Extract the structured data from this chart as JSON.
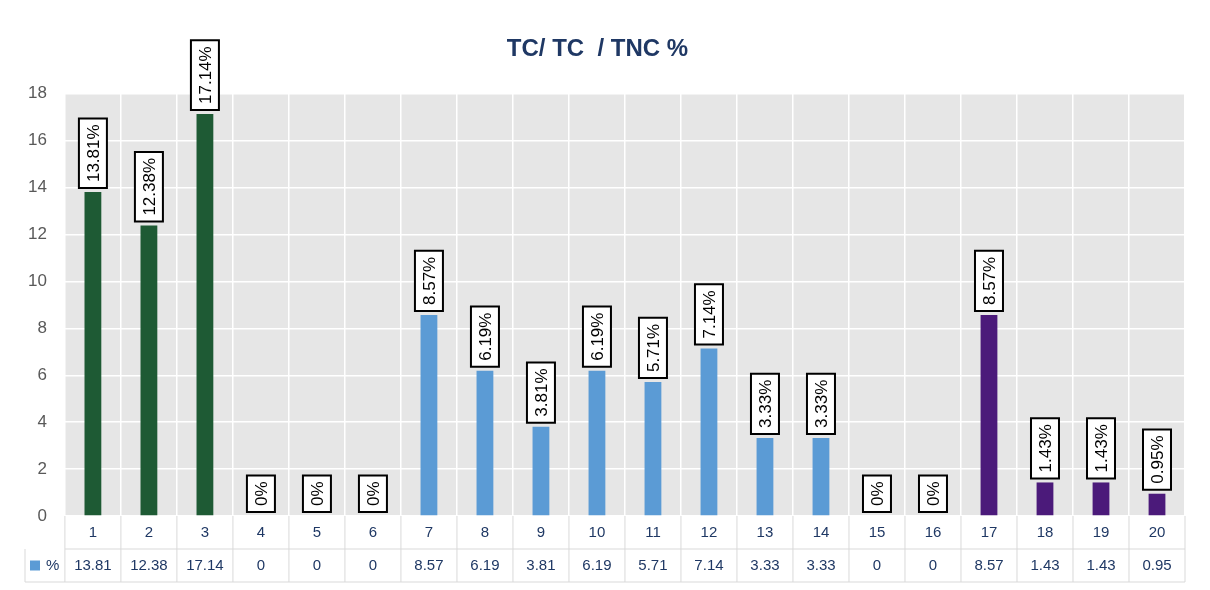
{
  "chart_data": {
    "type": "bar",
    "title": "TC/ TC  / TNC %",
    "categories": [
      "1",
      "2",
      "3",
      "4",
      "5",
      "6",
      "7",
      "8",
      "9",
      "10",
      "11",
      "12",
      "13",
      "14",
      "15",
      "16",
      "17",
      "18",
      "19",
      "20"
    ],
    "series": [
      {
        "name": "%",
        "color": "#5b9bd5",
        "colors": [
          "#1e5a34",
          "#1e5a34",
          "#1e5a34",
          "#5b9bd5",
          "#5b9bd5",
          "#5b9bd5",
          "#5b9bd5",
          "#5b9bd5",
          "#5b9bd5",
          "#5b9bd5",
          "#5b9bd5",
          "#5b9bd5",
          "#5b9bd5",
          "#5b9bd5",
          "#5b9bd5",
          "#5b9bd5",
          "#4b1a7a",
          "#4b1a7a",
          "#4b1a7a",
          "#4b1a7a"
        ],
        "values": [
          13.81,
          12.38,
          17.14,
          0,
          0,
          0,
          8.57,
          6.19,
          3.81,
          6.19,
          5.71,
          7.14,
          3.33,
          3.33,
          0,
          0,
          8.57,
          1.43,
          1.43,
          0.95
        ],
        "value_labels": [
          "13.81%",
          "12.38%",
          "17.14%",
          "0%",
          "0%",
          "0%",
          "8.57%",
          "6.19%",
          "3.81%",
          "6.19%",
          "5.71%",
          "7.14%",
          "3.33%",
          "3.33%",
          "0%",
          "0%",
          "8.57%",
          "1.43%",
          "1.43%",
          "0.95%"
        ]
      }
    ],
    "annotations": [
      "13.81",
      "12.38",
      "17.14",
      "0",
      "0",
      "0",
      "8.57",
      "6.19",
      "3.81",
      "6.19",
      "5.71",
      "7.14",
      "3.33",
      "3.33",
      "0",
      "0",
      "8.57",
      "1.43",
      "1.43",
      "0.95"
    ],
    "ylim": [
      0,
      18
    ],
    "yticks": [
      0,
      2,
      4,
      6,
      8,
      10,
      12,
      14,
      16,
      18
    ],
    "grid": true,
    "data_labels": true
  }
}
